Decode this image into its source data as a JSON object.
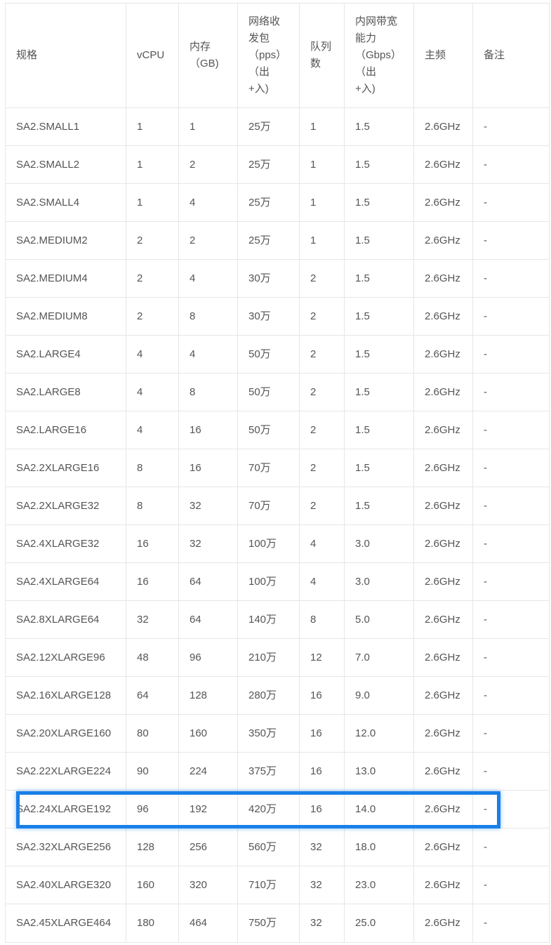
{
  "table": {
    "headers": [
      "规格",
      "vCPU",
      "内存\n（GB)",
      "网络收\n发包\n（pps）\n（出\n+入)",
      "队列\n数",
      "内网带宽\n能力\n（Gbps）\n（出\n+入)",
      "主频",
      "备注"
    ],
    "rows": [
      [
        "SA2.SMALL1",
        "1",
        "1",
        "25万",
        "1",
        "1.5",
        "2.6GHz",
        "-"
      ],
      [
        "SA2.SMALL2",
        "1",
        "2",
        "25万",
        "1",
        "1.5",
        "2.6GHz",
        "-"
      ],
      [
        "SA2.SMALL4",
        "1",
        "4",
        "25万",
        "1",
        "1.5",
        "2.6GHz",
        "-"
      ],
      [
        "SA2.MEDIUM2",
        "2",
        "2",
        "25万",
        "1",
        "1.5",
        "2.6GHz",
        "-"
      ],
      [
        "SA2.MEDIUM4",
        "2",
        "4",
        "30万",
        "2",
        "1.5",
        "2.6GHz",
        "-"
      ],
      [
        "SA2.MEDIUM8",
        "2",
        "8",
        "30万",
        "2",
        "1.5",
        "2.6GHz",
        "-"
      ],
      [
        "SA2.LARGE4",
        "4",
        "4",
        "50万",
        "2",
        "1.5",
        "2.6GHz",
        "-"
      ],
      [
        "SA2.LARGE8",
        "4",
        "8",
        "50万",
        "2",
        "1.5",
        "2.6GHz",
        "-"
      ],
      [
        "SA2.LARGE16",
        "4",
        "16",
        "50万",
        "2",
        "1.5",
        "2.6GHz",
        "-"
      ],
      [
        "SA2.2XLARGE16",
        "8",
        "16",
        "70万",
        "2",
        "1.5",
        "2.6GHz",
        "-"
      ],
      [
        "SA2.2XLARGE32",
        "8",
        "32",
        "70万",
        "2",
        "1.5",
        "2.6GHz",
        "-"
      ],
      [
        "SA2.4XLARGE32",
        "16",
        "32",
        "100万",
        "4",
        "3.0",
        "2.6GHz",
        "-"
      ],
      [
        "SA2.4XLARGE64",
        "16",
        "64",
        "100万",
        "4",
        "3.0",
        "2.6GHz",
        "-"
      ],
      [
        "SA2.8XLARGE64",
        "32",
        "64",
        "140万",
        "8",
        "5.0",
        "2.6GHz",
        "-"
      ],
      [
        "SA2.12XLARGE96",
        "48",
        "96",
        "210万",
        "12",
        "7.0",
        "2.6GHz",
        "-"
      ],
      [
        "SA2.16XLARGE128",
        "64",
        "128",
        "280万",
        "16",
        "9.0",
        "2.6GHz",
        "-"
      ],
      [
        "SA2.20XLARGE160",
        "80",
        "160",
        "350万",
        "16",
        "12.0",
        "2.6GHz",
        "-"
      ],
      [
        "SA2.22XLARGE224",
        "90",
        "224",
        "375万",
        "16",
        "13.0",
        "2.6GHz",
        "-"
      ],
      [
        "SA2.24XLARGE192",
        "96",
        "192",
        "420万",
        "16",
        "14.0",
        "2.6GHz",
        "-"
      ],
      [
        "SA2.32XLARGE256",
        "128",
        "256",
        "560万",
        "32",
        "18.0",
        "2.6GHz",
        "-"
      ],
      [
        "SA2.40XLARGE320",
        "160",
        "320",
        "710万",
        "32",
        "23.0",
        "2.6GHz",
        "-"
      ],
      [
        "SA2.45XLARGE464",
        "180",
        "464",
        "750万",
        "32",
        "25.0",
        "2.6GHz",
        "-"
      ]
    ]
  },
  "highlight": {
    "row_index": 18,
    "color": "#1a7fe8"
  }
}
